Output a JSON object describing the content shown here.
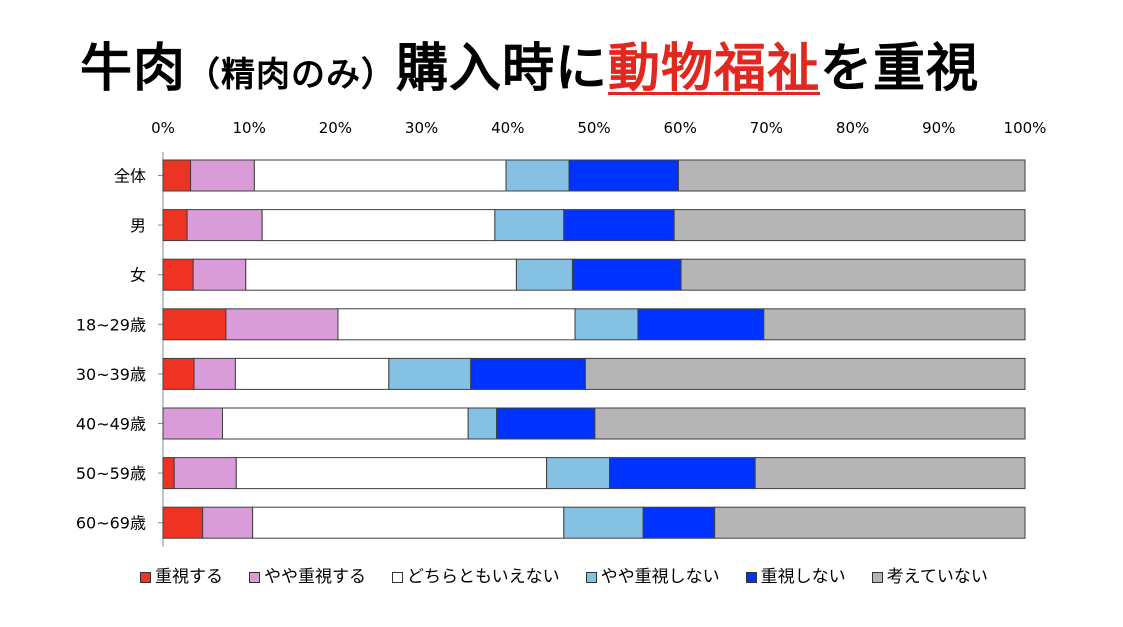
{
  "title": {
    "part1": "牛肉",
    "part2": "（精肉のみ）",
    "part3": "購入時に",
    "highlight": "動物福祉",
    "part4": "を重視"
  },
  "colors": {
    "accent": "#e2281e",
    "series": [
      "#ee3322",
      "#d99cd8",
      "#ffffff",
      "#85c1e3",
      "#0033ff",
      "#b5b5b5"
    ]
  },
  "chart_data": {
    "type": "bar",
    "orientation": "horizontal",
    "stacked": true,
    "normalized": true,
    "x_ticks": [
      "0%",
      "10%",
      "20%",
      "30%",
      "40%",
      "50%",
      "60%",
      "70%",
      "80%",
      "90%",
      "100%"
    ],
    "xlim": [
      0,
      100
    ],
    "categories": [
      "全体",
      "男",
      "女",
      "18~29歳",
      "30~39歳",
      "40~49歳",
      "50~59歳",
      "60~69歳"
    ],
    "series": [
      {
        "name": "重視する",
        "values": [
          3.2,
          2.8,
          3.5,
          7.3,
          3.6,
          0.0,
          1.3,
          4.6
        ]
      },
      {
        "name": "やや重視する",
        "values": [
          7.4,
          8.7,
          6.1,
          13.0,
          4.8,
          6.9,
          7.2,
          5.8
        ]
      },
      {
        "name": "どちらともいえない",
        "values": [
          29.2,
          27.0,
          31.4,
          27.5,
          17.8,
          28.5,
          36.0,
          36.1
        ]
      },
      {
        "name": "やや重視しない",
        "values": [
          7.3,
          8.0,
          6.5,
          7.3,
          9.5,
          3.3,
          7.3,
          9.2
        ]
      },
      {
        "name": "重視しない",
        "values": [
          12.7,
          12.8,
          12.6,
          14.6,
          13.3,
          11.4,
          16.9,
          8.3
        ]
      },
      {
        "name": "考えていない",
        "values": [
          40.2,
          40.7,
          39.9,
          30.3,
          51.0,
          49.9,
          31.3,
          36.0
        ]
      }
    ],
    "legend_position": "bottom",
    "grid": false
  }
}
